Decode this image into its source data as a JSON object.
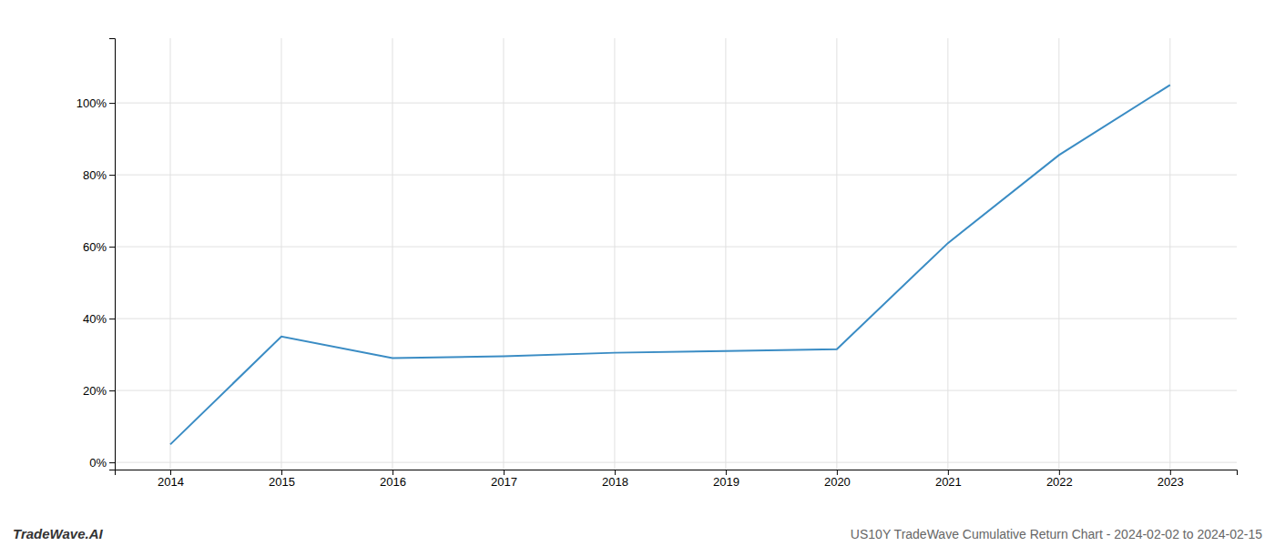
{
  "chart_data": {
    "type": "line",
    "title": "US10Y TradeWave Cumulative Return Chart - 2024-02-02 to 2024-02-15",
    "annotations": [
      "TradeWave.AI"
    ],
    "x": [
      2014,
      2015,
      2016,
      2017,
      2018,
      2019,
      2020,
      2021,
      2022,
      2023
    ],
    "values": [
      0.05,
      0.35,
      0.29,
      0.295,
      0.305,
      0.31,
      0.315,
      0.61,
      0.855,
      1.05
    ],
    "color": "#3a8cc4",
    "xlim": [
      2013.5,
      2023.6
    ],
    "ylim": [
      -0.02,
      1.18
    ],
    "xticks": [
      2014,
      2015,
      2016,
      2017,
      2018,
      2019,
      2020,
      2021,
      2022,
      2023
    ],
    "yticks": [
      {
        "value": 0.0,
        "label": "0%"
      },
      {
        "value": 0.2,
        "label": "20%"
      },
      {
        "value": 0.4,
        "label": "40%"
      },
      {
        "value": 0.6,
        "label": "60%"
      },
      {
        "value": 0.8,
        "label": "80%"
      },
      {
        "value": 1.0,
        "label": "100%"
      }
    ],
    "grid": true
  }
}
